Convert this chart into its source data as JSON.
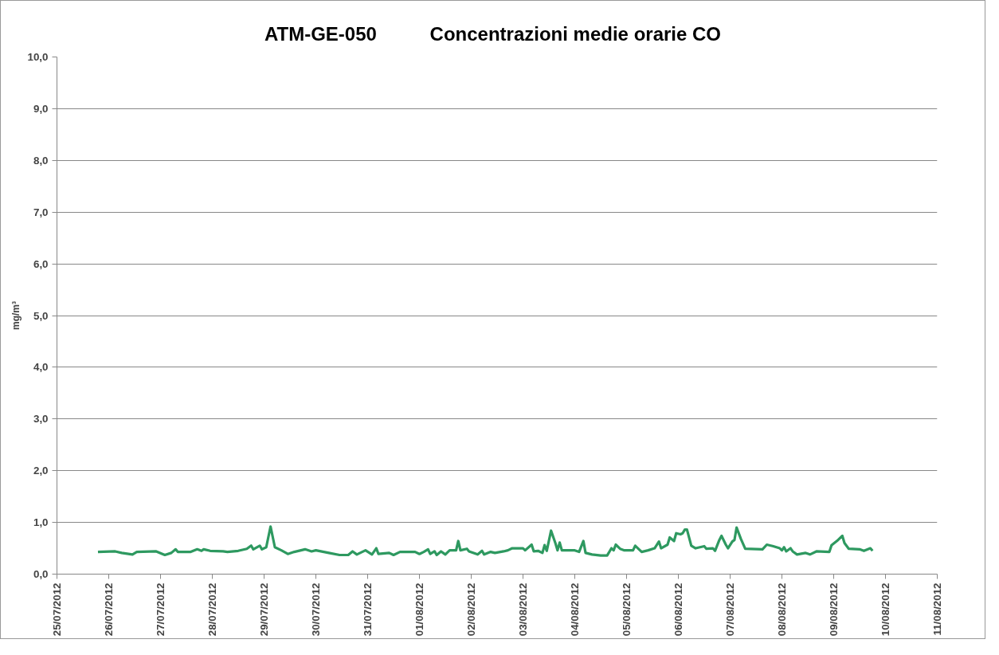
{
  "chart_data": {
    "type": "line",
    "title": "ATM-GE-050          Concentrazioni medie orarie CO",
    "ylabel": "mg/m³",
    "xlim": [
      "2012-07-25",
      "2012-08-11"
    ],
    "xticks": [
      {
        "value": "2012-07-25",
        "label": "25/07/2012"
      },
      {
        "value": "2012-07-26",
        "label": "26/07/2012"
      },
      {
        "value": "2012-07-27",
        "label": "27/07/2012"
      },
      {
        "value": "2012-07-28",
        "label": "28/07/2012"
      },
      {
        "value": "2012-07-29",
        "label": "29/07/2012"
      },
      {
        "value": "2012-07-30",
        "label": "30/07/2012"
      },
      {
        "value": "2012-07-31",
        "label": "31/07/2012"
      },
      {
        "value": "2012-08-01",
        "label": "01/08/2012"
      },
      {
        "value": "2012-08-02",
        "label": "02/08/2012"
      },
      {
        "value": "2012-08-03",
        "label": "03/08/2012"
      },
      {
        "value": "2012-08-04",
        "label": "04/08/2012"
      },
      {
        "value": "2012-08-05",
        "label": "05/08/2012"
      },
      {
        "value": "2012-08-06",
        "label": "06/08/2012"
      },
      {
        "value": "2012-08-07",
        "label": "07/08/2012"
      },
      {
        "value": "2012-08-08",
        "label": "08/08/2012"
      },
      {
        "value": "2012-08-09",
        "label": "09/08/2012"
      },
      {
        "value": "2012-08-10",
        "label": "10/08/2012"
      },
      {
        "value": "2012-08-11",
        "label": "11/08/2012"
      }
    ],
    "ylim": [
      0,
      10
    ],
    "yticks": [
      {
        "value": 0,
        "label": "0,0"
      },
      {
        "value": 1,
        "label": "1,0"
      },
      {
        "value": 2,
        "label": "2,0"
      },
      {
        "value": 3,
        "label": "3,0"
      },
      {
        "value": 4,
        "label": "4,0"
      },
      {
        "value": 5,
        "label": "5,0"
      },
      {
        "value": 6,
        "label": "6,0"
      },
      {
        "value": 7,
        "label": "7,0"
      },
      {
        "value": 8,
        "label": "8,0"
      },
      {
        "value": 9,
        "label": "9,0"
      },
      {
        "value": 10,
        "label": "10,0"
      }
    ],
    "grid": "y",
    "marker": "none",
    "line_style": "solid",
    "x": [
      "2012-07-25T19:00",
      "2012-07-26T03:00",
      "2012-07-26T06:00",
      "2012-07-26T11:00",
      "2012-07-26T13:00",
      "2012-07-26T22:00",
      "2012-07-27T02:00",
      "2012-07-27T05:00",
      "2012-07-27T07:00",
      "2012-07-27T08:00",
      "2012-07-27T14:00",
      "2012-07-27T17:00",
      "2012-07-27T19:00",
      "2012-07-27T20:00",
      "2012-07-27T23:00",
      "2012-07-28T05:00",
      "2012-07-28T07:00",
      "2012-07-28T12:00",
      "2012-07-28T16:00",
      "2012-07-28T18:00",
      "2012-07-28T19:00",
      "2012-07-28T22:00",
      "2012-07-28T23:00",
      "2012-07-29T01:00",
      "2012-07-29T03:00",
      "2012-07-29T05:00",
      "2012-07-29T08:00",
      "2012-07-29T11:00",
      "2012-07-29T14:00",
      "2012-07-29T19:00",
      "2012-07-29T22:00",
      "2012-07-30T00:00",
      "2012-07-30T06:00",
      "2012-07-30T11:00",
      "2012-07-30T15:00",
      "2012-07-30T17:00",
      "2012-07-30T19:00",
      "2012-07-30T23:00",
      "2012-07-31T02:00",
      "2012-07-31T04:00",
      "2012-07-31T05:00",
      "2012-07-31T10:00",
      "2012-07-31T12:00",
      "2012-07-31T15:00",
      "2012-07-31T22:00",
      "2012-08-01T00:00",
      "2012-08-01T02:00",
      "2012-08-01T04:00",
      "2012-08-01T05:00",
      "2012-08-01T07:00",
      "2012-08-01T08:00",
      "2012-08-01T10:00",
      "2012-08-01T12:00",
      "2012-08-01T14:00",
      "2012-08-01T17:00",
      "2012-08-01T18:00",
      "2012-08-01T19:00",
      "2012-08-01T22:00",
      "2012-08-01T23:00",
      "2012-08-02T03:00",
      "2012-08-02T05:00",
      "2012-08-02T06:00",
      "2012-08-02T09:00",
      "2012-08-02T11:00",
      "2012-08-02T15:00",
      "2012-08-02T17:00",
      "2012-08-02T19:00",
      "2012-08-03T00:00",
      "2012-08-03T01:00",
      "2012-08-03T04:00",
      "2012-08-03T05:00",
      "2012-08-03T07:00",
      "2012-08-03T09:00",
      "2012-08-03T10:00",
      "2012-08-03T11:00",
      "2012-08-03T13:00",
      "2012-08-03T15:00",
      "2012-08-03T16:00",
      "2012-08-03T17:00",
      "2012-08-03T18:00",
      "2012-08-04T00:00",
      "2012-08-04T02:00",
      "2012-08-04T04:00",
      "2012-08-04T05:00",
      "2012-08-04T08:00",
      "2012-08-04T12:00",
      "2012-08-04T15:00",
      "2012-08-04T17:00",
      "2012-08-04T18:00",
      "2012-08-04T19:00",
      "2012-08-04T21:00",
      "2012-08-04T23:00",
      "2012-08-05T03:00",
      "2012-08-05T04:00",
      "2012-08-05T07:00",
      "2012-08-05T10:00",
      "2012-08-05T13:00",
      "2012-08-05T15:00",
      "2012-08-05T16:00",
      "2012-08-05T19:00",
      "2012-08-05T20:00",
      "2012-08-05T22:00",
      "2012-08-05T23:00",
      "2012-08-06T01:00",
      "2012-08-06T02:00",
      "2012-08-06T03:00",
      "2012-08-06T04:00",
      "2012-08-06T06:00",
      "2012-08-06T08:00",
      "2012-08-06T12:00",
      "2012-08-06T13:00",
      "2012-08-06T16:00",
      "2012-08-06T17:00",
      "2012-08-06T19:00",
      "2012-08-06T20:00",
      "2012-08-06T22:00",
      "2012-08-06T23:00",
      "2012-08-07T01:00",
      "2012-08-07T02:00",
      "2012-08-07T03:00",
      "2012-08-07T05:00",
      "2012-08-07T07:00",
      "2012-08-07T15:00",
      "2012-08-07T17:00",
      "2012-08-07T20:00",
      "2012-08-07T23:00",
      "2012-08-08T00:00",
      "2012-08-08T01:00",
      "2012-08-08T02:00",
      "2012-08-08T04:00",
      "2012-08-08T05:00",
      "2012-08-08T07:00",
      "2012-08-08T11:00",
      "2012-08-08T13:00",
      "2012-08-08T16:00",
      "2012-08-08T22:00",
      "2012-08-08T23:00",
      "2012-08-09T02:00",
      "2012-08-09T04:00",
      "2012-08-09T05:00",
      "2012-08-09T07:00",
      "2012-08-09T12:00",
      "2012-08-09T14:00",
      "2012-08-09T17:00",
      "2012-08-09T18:00"
    ],
    "series": [
      {
        "color": "#2e9960",
        "values": [
          0.43,
          0.44,
          0.41,
          0.38,
          0.43,
          0.44,
          0.37,
          0.41,
          0.48,
          0.43,
          0.43,
          0.48,
          0.45,
          0.48,
          0.45,
          0.44,
          0.43,
          0.45,
          0.49,
          0.55,
          0.48,
          0.55,
          0.48,
          0.52,
          0.92,
          0.52,
          0.46,
          0.39,
          0.43,
          0.48,
          0.44,
          0.46,
          0.41,
          0.37,
          0.37,
          0.44,
          0.38,
          0.46,
          0.38,
          0.5,
          0.39,
          0.41,
          0.37,
          0.43,
          0.43,
          0.39,
          0.43,
          0.48,
          0.39,
          0.44,
          0.37,
          0.44,
          0.38,
          0.46,
          0.46,
          0.64,
          0.46,
          0.49,
          0.44,
          0.38,
          0.45,
          0.38,
          0.43,
          0.41,
          0.44,
          0.46,
          0.5,
          0.5,
          0.46,
          0.57,
          0.44,
          0.45,
          0.41,
          0.56,
          0.45,
          0.84,
          0.6,
          0.46,
          0.61,
          0.46,
          0.46,
          0.43,
          0.64,
          0.41,
          0.38,
          0.36,
          0.36,
          0.5,
          0.46,
          0.57,
          0.49,
          0.46,
          0.46,
          0.55,
          0.43,
          0.46,
          0.5,
          0.63,
          0.5,
          0.57,
          0.71,
          0.64,
          0.79,
          0.77,
          0.79,
          0.86,
          0.86,
          0.55,
          0.5,
          0.54,
          0.49,
          0.5,
          0.45,
          0.66,
          0.74,
          0.57,
          0.5,
          0.63,
          0.66,
          0.9,
          0.68,
          0.49,
          0.48,
          0.57,
          0.54,
          0.5,
          0.46,
          0.52,
          0.44,
          0.5,
          0.44,
          0.38,
          0.41,
          0.38,
          0.44,
          0.43,
          0.56,
          0.66,
          0.74,
          0.6,
          0.49,
          0.48,
          0.45,
          0.5,
          0.45
        ]
      }
    ]
  }
}
